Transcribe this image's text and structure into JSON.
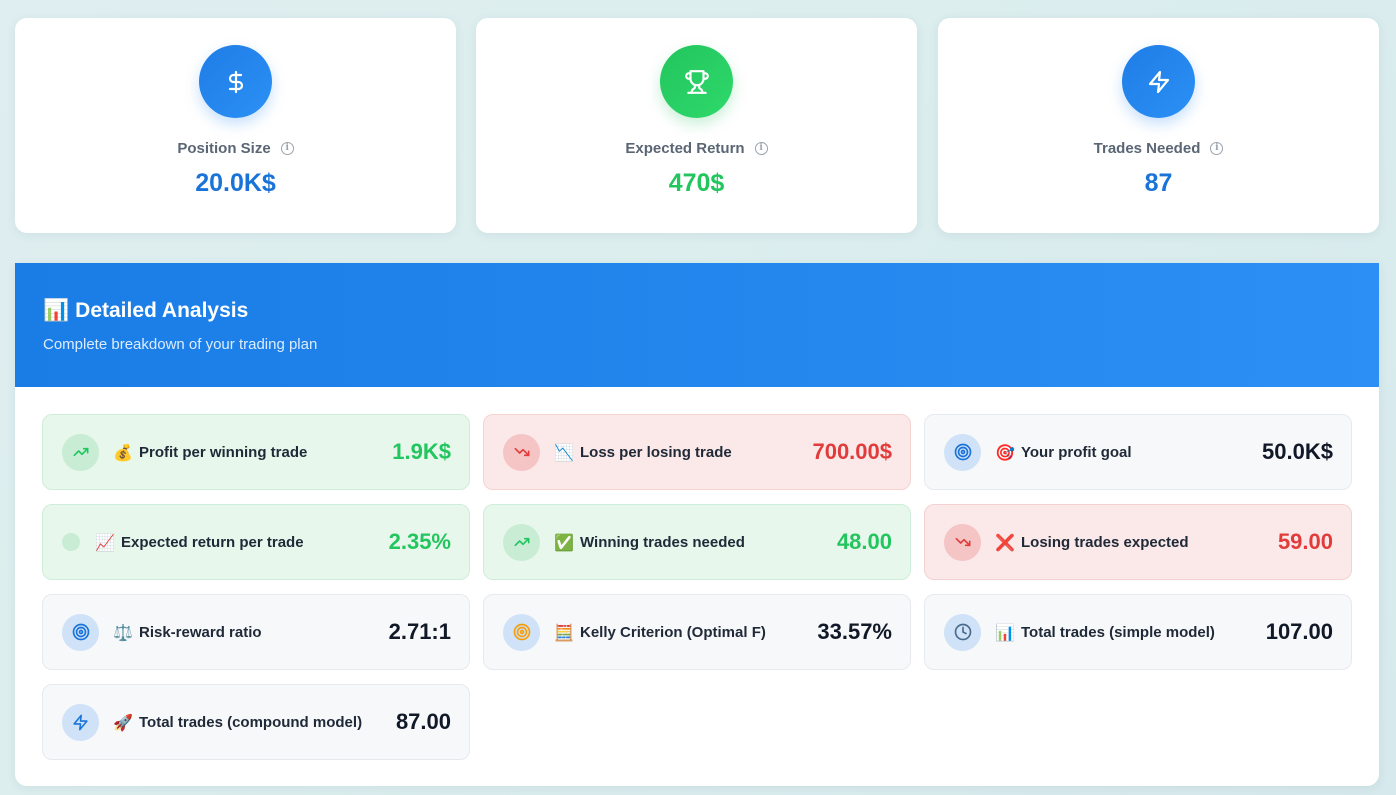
{
  "summary": {
    "position_size": {
      "label": "Position Size",
      "value": "20.0K$",
      "icon": "dollar-icon"
    },
    "expected_return": {
      "label": "Expected Return",
      "value": "470$",
      "icon": "trophy-icon"
    },
    "trades_needed": {
      "label": "Trades Needed",
      "value": "87",
      "icon": "lightning-icon"
    },
    "info_glyph": "i"
  },
  "analysis": {
    "title_emoji": "📊",
    "title": "Detailed Analysis",
    "subtitle": "Complete breakdown of your trading plan",
    "metrics": [
      {
        "emoji": "💰",
        "label": "Profit per winning trade",
        "value": "1.9K$"
      },
      {
        "emoji": "📉",
        "label": "Loss per losing trade",
        "value": "700.00$"
      },
      {
        "emoji": "🎯",
        "label": "Your profit goal",
        "value": "50.0K$"
      },
      {
        "emoji": "📈",
        "label": "Expected return per trade",
        "value": "2.35%"
      },
      {
        "emoji": "✅",
        "label": "Winning trades needed",
        "value": "48.00"
      },
      {
        "emoji": "❌",
        "label": "Losing trades expected",
        "value": "59.00"
      },
      {
        "emoji": "⚖️",
        "label": "Risk-reward ratio",
        "value": "2.71:1"
      },
      {
        "emoji": "🧮",
        "label": "Kelly Criterion (Optimal F)",
        "value": "33.57%"
      },
      {
        "emoji": "📊",
        "label": "Total trades (simple model)",
        "value": "107.00"
      },
      {
        "emoji": "🚀",
        "label": "Total trades (compound model)",
        "value": "87.00"
      }
    ]
  },
  "colors": {
    "primary_blue": "#1a73d9",
    "success_green": "#22c55e",
    "danger_red": "#e23b3b"
  }
}
